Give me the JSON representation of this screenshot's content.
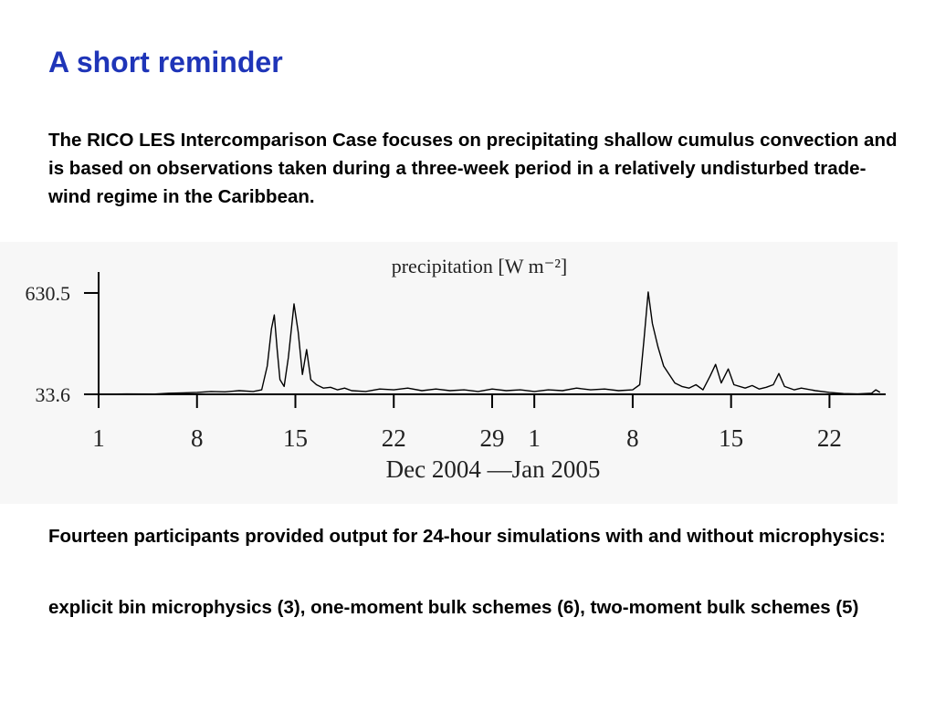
{
  "title": "A short reminder",
  "intro": "The RICO LES Intercomparison Case focuses on precipitating shallow cumulus convection and is based on observations taken during a three-week period in a relatively undisturbed trade-wind regime in the Caribbean.",
  "chart_data": {
    "type": "line",
    "title": "precipitation [W m⁻²]",
    "x_label": "Dec 2004 —Jan 2005",
    "color": "#000000",
    "x": [
      0,
      2,
      4,
      5,
      6,
      7,
      8,
      9,
      10,
      11,
      11.6,
      12,
      12.3,
      12.5,
      12.7,
      12.9,
      13.2,
      13.5,
      13.9,
      14.2,
      14.5,
      14.8,
      15.1,
      15.5,
      16,
      16.5,
      17,
      17.5,
      18,
      19,
      20,
      21,
      22,
      23,
      24,
      25,
      26,
      27,
      28,
      29,
      30,
      31,
      32,
      33,
      34,
      35,
      36,
      37,
      38,
      38.5,
      38.8,
      39.1,
      39.4,
      39.8,
      40.2,
      40.6,
      41,
      41.5,
      42,
      42.5,
      43,
      43.5,
      43.9,
      44.3,
      44.8,
      45.2,
      46,
      46.5,
      47,
      47.5,
      48,
      48.4,
      48.8,
      49.5,
      50,
      51,
      52,
      53,
      54,
      55,
      55.3,
      55.6
    ],
    "values": [
      34,
      36,
      35,
      40,
      42,
      45,
      50,
      48,
      55,
      50,
      60,
      200,
      420,
      501,
      300,
      120,
      80,
      250,
      566,
      400,
      150,
      297,
      120,
      90,
      70,
      75,
      60,
      70,
      55,
      50,
      65,
      60,
      70,
      55,
      65,
      55,
      60,
      50,
      65,
      55,
      60,
      50,
      60,
      55,
      70,
      60,
      65,
      55,
      60,
      90,
      350,
      636,
      450,
      313,
      200,
      150,
      100,
      80,
      70,
      90,
      60,
      140,
      210,
      100,
      183,
      90,
      70,
      85,
      65,
      75,
      90,
      156,
      80,
      60,
      70,
      55,
      45,
      38,
      36,
      40,
      60,
      45
    ],
    "xlim": [
      0,
      56
    ],
    "xticks": [
      {
        "value": 0,
        "label": "1"
      },
      {
        "value": 7,
        "label": "8"
      },
      {
        "value": 14,
        "label": "15"
      },
      {
        "value": 21,
        "label": "22"
      },
      {
        "value": 28,
        "label": "29"
      },
      {
        "value": 31,
        "label": "1"
      },
      {
        "value": 38,
        "label": "8"
      },
      {
        "value": 45,
        "label": "15"
      },
      {
        "value": 52,
        "label": "22"
      }
    ],
    "ylim": [
      33.6,
      754
    ],
    "yticks": [
      33.6,
      630.5
    ]
  },
  "participants": "Fourteen participants provided output for 24-hour simulations with and without microphysics:",
  "schemes": "explicit bin microphysics (3), one-moment bulk schemes (6), two-moment bulk schemes (5)"
}
